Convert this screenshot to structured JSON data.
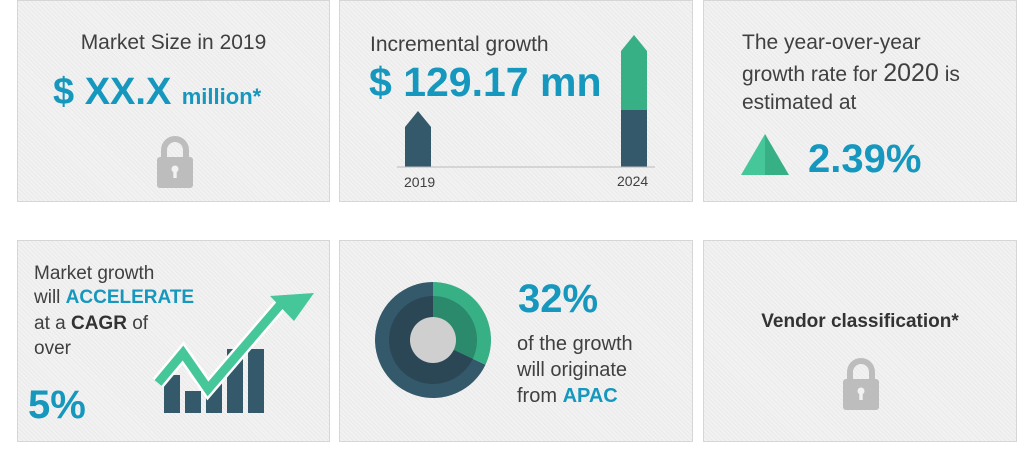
{
  "colors": {
    "accent": "#1697bd",
    "dark_slate": "#34596b",
    "green": "#37b085",
    "lock_gray": "#bdbdbd"
  },
  "market_size": {
    "title": "Market Size in 2019",
    "value": "$ XX.X",
    "unit": "million*",
    "icon": "lock-icon"
  },
  "incremental": {
    "title": "Incremental growth",
    "value": "$ 129.17 mn",
    "years": [
      "2019",
      "2024"
    ]
  },
  "yoy": {
    "line1": "The year-over-year",
    "line2": "growth rate for",
    "year": "2020",
    "line2_end": "is",
    "line3": "estimated at",
    "value": "2.39%",
    "icon": "triangle-up-icon"
  },
  "cagr": {
    "line1": "Market growth",
    "line2_pre": "will",
    "accelerate": "ACCELERATE",
    "line3_pre": "at a",
    "cagr": "CAGR",
    "line3_post": "of",
    "line4": "over",
    "value": "5%",
    "icon": "trend-arrow-chart-icon"
  },
  "apac": {
    "value": "32%",
    "line1": "of the growth",
    "line2": "will originate",
    "line3_pre": "from",
    "region": "APAC",
    "share_percent": 32,
    "icon": "donut-chart-icon"
  },
  "vendor": {
    "title": "Vendor classification*",
    "icon": "lock-icon"
  }
}
